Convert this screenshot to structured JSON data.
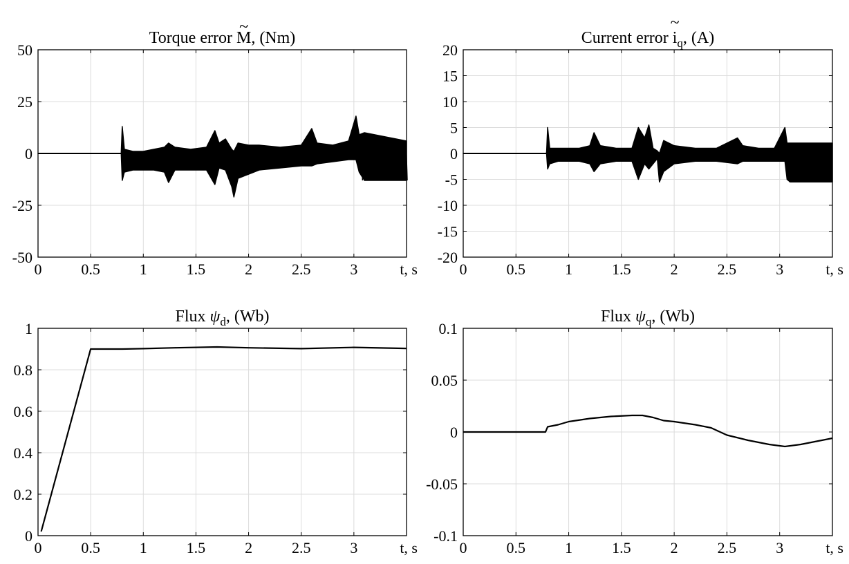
{
  "figure": {
    "panels": [
      "torque",
      "current",
      "flux_d",
      "flux_q"
    ]
  },
  "chart_data": [
    {
      "id": "torque",
      "type": "line",
      "title_prefix": "Torque error ",
      "title_symbol": "M",
      "title_symbol_mark": "~",
      "title_suffix": ", (Nm)",
      "xlabel": "t, s",
      "xticks": [
        "0",
        "0.5",
        "1",
        "1.5",
        "2",
        "2.5",
        "3"
      ],
      "xtick_values": [
        0,
        0.5,
        1,
        1.5,
        2,
        2.5,
        3
      ],
      "yticks": [
        "-50",
        "-25",
        "0",
        "25",
        "50"
      ],
      "ytick_values": [
        -50,
        -25,
        0,
        25,
        50
      ],
      "xlim": [
        0,
        3.5
      ],
      "ylim": [
        -50,
        50
      ],
      "grid": true,
      "series": [
        {
          "color": "#000000",
          "x": [
            0,
            0.77,
            0.79,
            0.8,
            0.82,
            0.9,
            1.0,
            1.1,
            1.2,
            1.24,
            1.3,
            1.45,
            1.6,
            1.68,
            1.72,
            1.78,
            1.84,
            1.86,
            1.9,
            2.0,
            2.1,
            2.3,
            2.5,
            2.6,
            2.65,
            2.8,
            2.95,
            3.02,
            3.05,
            3.1,
            3.2,
            3.3,
            3.4,
            3.5
          ],
          "upper": [
            0,
            0,
            0,
            13,
            2,
            1,
            1,
            2,
            3,
            5,
            3,
            2,
            3,
            11,
            5,
            7,
            2,
            1,
            5,
            4,
            4,
            3,
            4,
            12,
            5,
            4,
            6,
            18,
            9,
            10,
            9,
            8,
            7,
            6
          ],
          "lower": [
            0,
            0,
            0,
            -13,
            -9,
            -8,
            -8,
            -8,
            -9,
            -14,
            -8,
            -8,
            -8,
            -15,
            -7,
            -8,
            -16,
            -21,
            -12,
            -10,
            -8,
            -7,
            -6,
            -6,
            -5,
            -4,
            -3,
            -3,
            -9,
            -13,
            -13,
            -13,
            -13,
            -13
          ]
        }
      ]
    },
    {
      "id": "current",
      "type": "line",
      "title_prefix": "Current error ",
      "title_symbol": "i",
      "title_symbol_mark": "~",
      "title_subscript": "q",
      "title_suffix": ", (A)",
      "xlabel": "t, s",
      "xticks": [
        "0",
        "0.5",
        "1",
        "1.5",
        "2",
        "2.5",
        "3"
      ],
      "xtick_values": [
        0,
        0.5,
        1,
        1.5,
        2,
        2.5,
        3
      ],
      "yticks": [
        "-20",
        "-15",
        "-10",
        "-5",
        "0",
        "5",
        "10",
        "15",
        "20"
      ],
      "ytick_values": [
        -20,
        -15,
        -10,
        -5,
        0,
        5,
        10,
        15,
        20
      ],
      "xlim": [
        0,
        3.5
      ],
      "ylim": [
        -20,
        20
      ],
      "grid": true,
      "series": [
        {
          "color": "#000000",
          "x": [
            0,
            0.77,
            0.79,
            0.8,
            0.82,
            0.9,
            1.0,
            1.1,
            1.2,
            1.24,
            1.3,
            1.45,
            1.6,
            1.66,
            1.72,
            1.76,
            1.8,
            1.84,
            1.86,
            1.9,
            2.0,
            2.2,
            2.4,
            2.6,
            2.65,
            2.8,
            2.95,
            3.05,
            3.07,
            3.1,
            3.2,
            3.3,
            3.4,
            3.5
          ],
          "upper": [
            0,
            0,
            0,
            5,
            1,
            1,
            1,
            1,
            1.5,
            4,
            1.5,
            1,
            1,
            5,
            3,
            5.5,
            1,
            0.5,
            0,
            2.5,
            1.5,
            1,
            1,
            3,
            1.5,
            1,
            1,
            5,
            2,
            2,
            2,
            2,
            2,
            2
          ],
          "lower": [
            0,
            0,
            0,
            -3,
            -2,
            -1.5,
            -1.5,
            -1.5,
            -2,
            -3.5,
            -2,
            -1.5,
            -1.5,
            -5,
            -2,
            -3,
            -2,
            -1,
            -5.5,
            -3.5,
            -2,
            -1.5,
            -1.5,
            -2,
            -1.5,
            -1.5,
            -1.5,
            -1.5,
            -5,
            -5.5,
            -5.5,
            -5.5,
            -5.5,
            -5.5
          ]
        }
      ]
    },
    {
      "id": "flux_d",
      "type": "line",
      "title_prefix": "Flux ",
      "title_symbol": "ψ",
      "title_subscript": "d",
      "title_suffix": ", (Wb)",
      "xlabel": "t, s",
      "xticks": [
        "0",
        "0.5",
        "1",
        "1.5",
        "2",
        "2.5",
        "3"
      ],
      "xtick_values": [
        0,
        0.5,
        1,
        1.5,
        2,
        2.5,
        3
      ],
      "yticks": [
        "0",
        "0.2",
        "0.4",
        "0.6",
        "0.8",
        "1"
      ],
      "ytick_values": [
        0,
        0.2,
        0.4,
        0.6,
        0.8,
        1
      ],
      "xlim": [
        0,
        3.5
      ],
      "ylim": [
        0,
        1
      ],
      "grid": true,
      "series": [
        {
          "color": "#000000",
          "x": [
            0.03,
            0.5,
            0.8,
            1.0,
            1.3,
            1.7,
            2.0,
            2.5,
            3.0,
            3.5
          ],
          "y": [
            0.02,
            0.9,
            0.9,
            0.902,
            0.906,
            0.91,
            0.906,
            0.902,
            0.908,
            0.903
          ]
        }
      ]
    },
    {
      "id": "flux_q",
      "type": "line",
      "title_prefix": "Flux ",
      "title_symbol": "ψ",
      "title_subscript": "q",
      "title_suffix": ", (Wb)",
      "xlabel": "t, s",
      "xticks": [
        "0",
        "0.5",
        "1",
        "1.5",
        "2",
        "2.5",
        "3"
      ],
      "xtick_values": [
        0,
        0.5,
        1,
        1.5,
        2,
        2.5,
        3
      ],
      "yticks": [
        "-0.1",
        "-0.05",
        "0",
        "0.05",
        "0.1"
      ],
      "ytick_values": [
        -0.1,
        -0.05,
        0,
        0.05,
        0.1
      ],
      "xlim": [
        0,
        3.5
      ],
      "ylim": [
        -0.1,
        0.1
      ],
      "grid": true,
      "series": [
        {
          "color": "#000000",
          "x": [
            0,
            0.78,
            0.8,
            0.9,
            1.0,
            1.2,
            1.4,
            1.6,
            1.7,
            1.8,
            1.9,
            2.0,
            2.2,
            2.35,
            2.5,
            2.7,
            2.9,
            3.05,
            3.2,
            3.35,
            3.5
          ],
          "y": [
            0,
            0,
            0.005,
            0.007,
            0.01,
            0.013,
            0.015,
            0.016,
            0.016,
            0.014,
            0.011,
            0.01,
            0.007,
            0.004,
            -0.003,
            -0.008,
            -0.012,
            -0.014,
            -0.012,
            -0.009,
            -0.006
          ]
        }
      ]
    }
  ]
}
